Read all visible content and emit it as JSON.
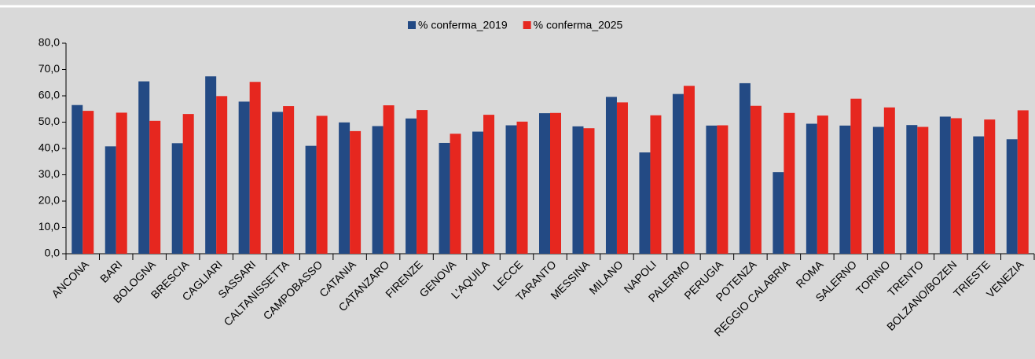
{
  "chart_data": {
    "type": "bar",
    "categories": [
      "ANCONA",
      "BARI",
      "BOLOGNA",
      "BRESCIA",
      "CAGLIARI",
      "SASSARI",
      "CALTANISSETTA",
      "CAMPOBASSO",
      "CATANIA",
      "CATANZARO",
      "FIRENZE",
      "GENOVA",
      "L'AQUILA",
      "LECCE",
      "TARANTO",
      "MESSINA",
      "MILANO",
      "NAPOLI",
      "PALERMO",
      "PERUGIA",
      "POTENZA",
      "REGGIO CALABRIA",
      "ROMA",
      "SALERNO",
      "TORINO",
      "TRENTO",
      "BOLZANO/BOZEN",
      "TRIESTE",
      "VENEZIA"
    ],
    "series": [
      {
        "name": "% conferma_2019",
        "color": "#234a84",
        "values": [
          56.5,
          40.8,
          65.5,
          42.0,
          67.4,
          57.8,
          53.9,
          41.0,
          49.9,
          48.5,
          51.4,
          42.1,
          46.4,
          48.8,
          53.4,
          48.4,
          59.6,
          38.5,
          60.7,
          48.7,
          64.8,
          31.0,
          49.4,
          48.7,
          48.2,
          48.9,
          52.1,
          44.6,
          43.5
        ]
      },
      {
        "name": "% conferma_2025",
        "color": "#e6271f",
        "values": [
          54.3,
          53.6,
          50.5,
          53.1,
          59.9,
          65.3,
          56.1,
          52.4,
          46.6,
          56.4,
          54.6,
          45.6,
          52.8,
          50.2,
          53.5,
          47.7,
          57.5,
          52.6,
          63.8,
          48.8,
          56.2,
          53.5,
          52.5,
          58.9,
          55.6,
          48.2,
          51.5,
          51.0,
          54.5
        ]
      }
    ],
    "ylim": [
      0,
      80
    ],
    "yticks": [
      {
        "value": 0,
        "label": "0,0"
      },
      {
        "value": 10,
        "label": "10,0"
      },
      {
        "value": 20,
        "label": "20,0"
      },
      {
        "value": 30,
        "label": "30,0"
      },
      {
        "value": 40,
        "label": "40,0"
      },
      {
        "value": 50,
        "label": "50,0"
      },
      {
        "value": 60,
        "label": "60,0"
      },
      {
        "value": 70,
        "label": "70,0"
      },
      {
        "value": 80,
        "label": "80,0"
      }
    ],
    "grid": false,
    "legend": "top"
  }
}
